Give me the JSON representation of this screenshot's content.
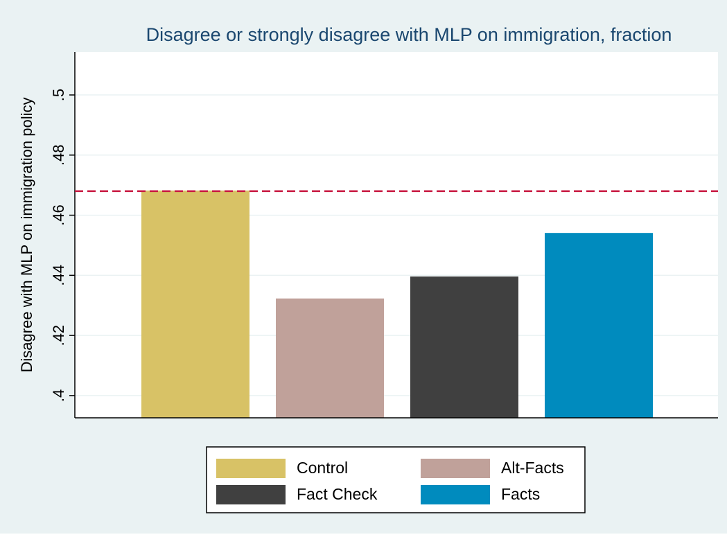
{
  "chart_data": {
    "type": "bar",
    "title": "Disagree or strongly disagree with MLP on immigration, fraction",
    "ylabel": "Disagree with MLP on immigration policy",
    "categories": [
      "Control",
      "Alt-Facts",
      "Fact Check",
      "Facts"
    ],
    "values": [
      0.4682,
      0.4323,
      0.4396,
      0.4541
    ],
    "colors": [
      "#d8c266",
      "#c0a19a",
      "#404040",
      "#008bbe"
    ],
    "ylim": [
      0.3926,
      0.5143
    ],
    "yticks": [
      {
        "value": 0.4,
        "label": ".4"
      },
      {
        "value": 0.42,
        "label": ".42"
      },
      {
        "value": 0.44,
        "label": ".44"
      },
      {
        "value": 0.46,
        "label": ".46"
      },
      {
        "value": 0.48,
        "label": ".48"
      },
      {
        "value": 0.5,
        "label": ".5"
      }
    ],
    "grid": true,
    "reference_line": {
      "value": 0.468,
      "color": "#c8163f"
    },
    "legend": "bottom"
  }
}
